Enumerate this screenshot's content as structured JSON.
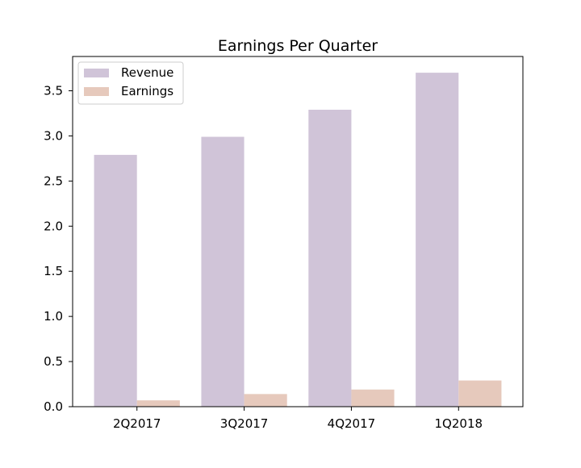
{
  "chart_data": {
    "type": "bar",
    "title": "Earnings Per Quarter",
    "xlabel": "",
    "ylabel": "",
    "categories": [
      "2Q2017",
      "3Q2017",
      "4Q2017",
      "1Q2018"
    ],
    "series": [
      {
        "name": "Revenue",
        "values": [
          2.79,
          2.99,
          3.29,
          3.7
        ],
        "color": "#d0c4d8"
      },
      {
        "name": "Earnings",
        "values": [
          0.07,
          0.14,
          0.19,
          0.29
        ],
        "color": "#e6c9bc"
      }
    ],
    "ylim": [
      0,
      3.88
    ],
    "yticks": [
      0.0,
      0.5,
      1.0,
      1.5,
      2.0,
      2.5,
      3.0,
      3.5
    ],
    "ytick_labels": [
      "0.0",
      "0.5",
      "1.0",
      "1.5",
      "2.0",
      "2.5",
      "3.0",
      "3.5"
    ],
    "grid": false,
    "legend_position": "top-left"
  }
}
